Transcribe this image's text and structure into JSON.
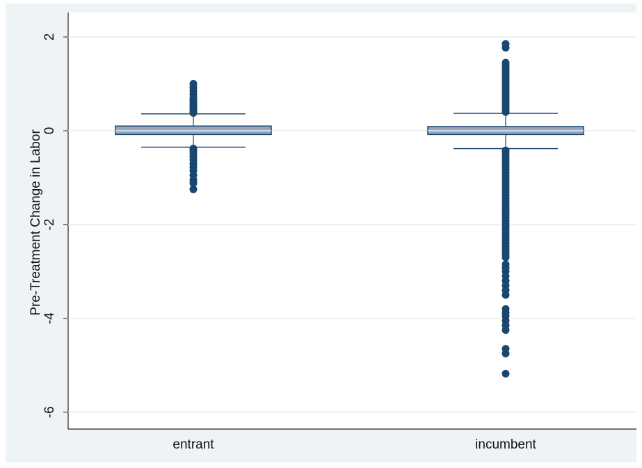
{
  "chart_data": {
    "type": "box",
    "ylabel": "Pre-Treatment Change in Labor",
    "categories": [
      "entrant",
      "incumbent"
    ],
    "color": "#1a476f",
    "box_fill": "#93a7c4",
    "ylim": [
      -6.36,
      2.52
    ],
    "yticks": [
      -6,
      -4,
      -2,
      0,
      2
    ],
    "grid": true,
    "series": [
      {
        "q1": -0.08,
        "median": 0.0,
        "q3": 0.1,
        "whisker_low": -0.35,
        "whisker_high": 0.36,
        "outliers": [
          0.38,
          0.42,
          0.46,
          0.5,
          0.55,
          0.6,
          0.65,
          0.7,
          0.78,
          0.85,
          0.92,
          1.0,
          -0.38,
          -0.42,
          -0.48,
          -0.55,
          -0.62,
          -0.7,
          -0.78,
          -0.85,
          -0.95,
          -1.05,
          -1.12,
          -1.25
        ]
      },
      {
        "q1": -0.08,
        "median": 0.0,
        "q3": 0.09,
        "whisker_low": -0.38,
        "whisker_high": 0.37,
        "outliers": [
          0.4,
          0.45,
          0.5,
          0.55,
          0.6,
          0.65,
          0.7,
          0.75,
          0.8,
          0.85,
          0.9,
          0.95,
          1.0,
          1.05,
          1.1,
          1.15,
          1.2,
          1.25,
          1.3,
          1.35,
          1.4,
          1.45,
          1.77,
          1.85,
          -0.42,
          -0.48,
          -0.54,
          -0.6,
          -0.66,
          -0.72,
          -0.78,
          -0.84,
          -0.9,
          -0.96,
          -1.02,
          -1.08,
          -1.14,
          -1.2,
          -1.26,
          -1.32,
          -1.38,
          -1.44,
          -1.5,
          -1.56,
          -1.62,
          -1.68,
          -1.74,
          -1.8,
          -1.86,
          -1.92,
          -1.98,
          -2.04,
          -2.1,
          -2.16,
          -2.22,
          -2.28,
          -2.34,
          -2.4,
          -2.46,
          -2.52,
          -2.58,
          -2.64,
          -2.7,
          -2.85,
          -2.92,
          -3.0,
          -3.1,
          -3.2,
          -3.3,
          -3.4,
          -3.5,
          -3.8,
          -3.88,
          -3.95,
          -4.05,
          -4.15,
          -4.25,
          -4.65,
          -4.75,
          -5.18
        ]
      }
    ]
  }
}
